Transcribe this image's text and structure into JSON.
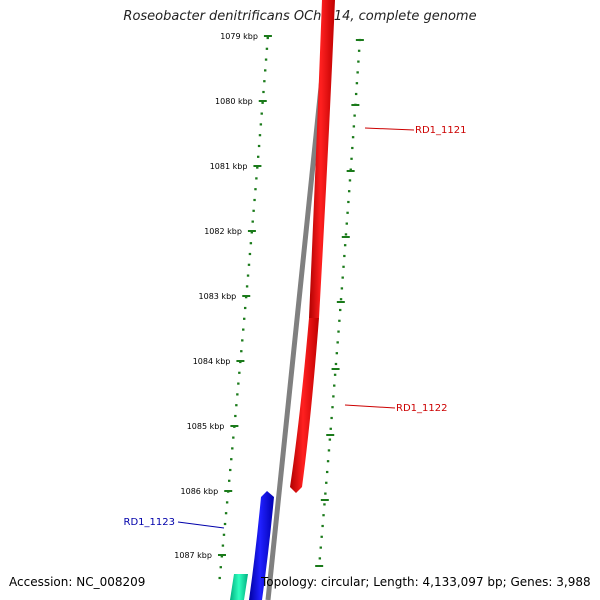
{
  "title": "Roseobacter denitrificans OCh 114, complete genome",
  "footer": {
    "accession": "Accession: NC_008209",
    "summary": "Topology: circular; Length: 4,133,097 bp; Genes: 3,988"
  },
  "colors": {
    "backbone": "#808080",
    "forward_gene": "#ff0000",
    "reverse_gene": "#0000ff",
    "other_gene": "#00e0a0",
    "ruler_ticks": "#1a7a1a",
    "forward_label": "#cc0000",
    "reverse_label": "#0000aa"
  },
  "ruler": {
    "ticks": [
      {
        "label": "1079 kbp"
      },
      {
        "label": "1080 kbp"
      },
      {
        "label": "1081 kbp"
      },
      {
        "label": "1082 kbp"
      },
      {
        "label": "1083 kbp"
      },
      {
        "label": "1084 kbp"
      },
      {
        "label": "1085 kbp"
      },
      {
        "label": "1086 kbp"
      },
      {
        "label": "1087 kbp"
      }
    ]
  },
  "genes": [
    {
      "name": "RD1_1121",
      "strand": "forward"
    },
    {
      "name": "RD1_1122",
      "strand": "forward"
    },
    {
      "name": "RD1_1123",
      "strand": "reverse"
    }
  ]
}
